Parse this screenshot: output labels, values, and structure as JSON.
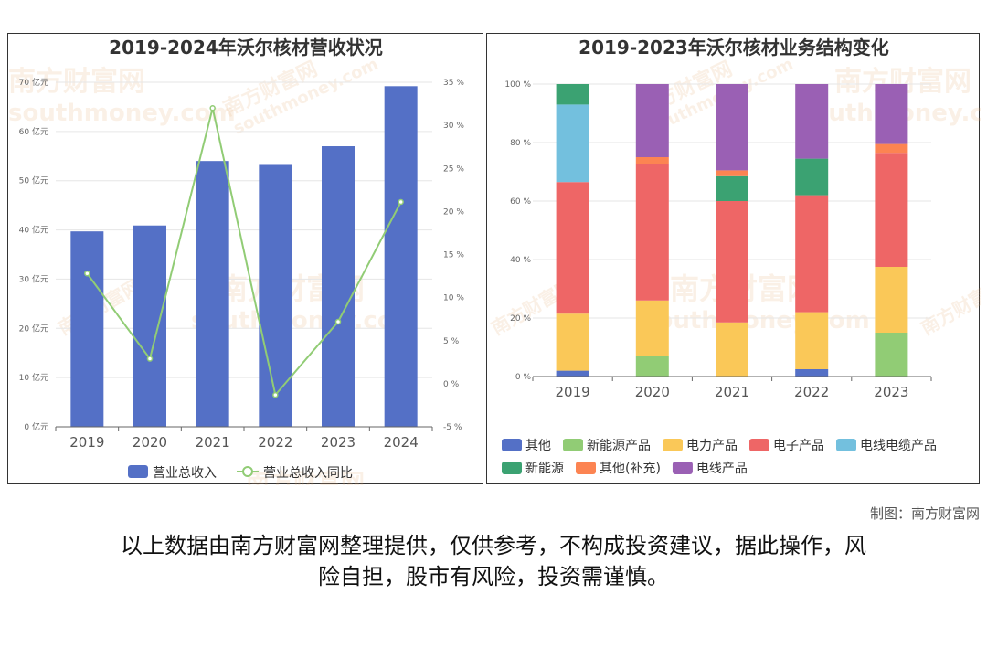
{
  "colors": {
    "bar": "#5470c6",
    "line": "#91cc75",
    "series": [
      "#5470c6",
      "#91cc75",
      "#fac858",
      "#ee6666",
      "#73c0de",
      "#3ba272",
      "#fc8452",
      "#9a60b4"
    ]
  },
  "watermark": {
    "cn": "南方财富网",
    "en": "southmoney.com"
  },
  "credit": "制图：南方财富网",
  "disclaimer": {
    "line1": "以上数据由南方财富网整理提供，仅供参考，不构成投资建议，据此操作，风",
    "line2": "险自担，股市有风险，投资需谨慎。"
  },
  "chart_data": [
    {
      "type": "bar",
      "title": "2019-2024年沃尔核材营收状况",
      "categories": [
        "2019",
        "2020",
        "2021",
        "2022",
        "2023",
        "2024"
      ],
      "series": [
        {
          "name": "营业总收入",
          "type": "bar",
          "axis": "left",
          "values": [
            39.7,
            40.9,
            54.0,
            53.2,
            57.0,
            69.2
          ]
        },
        {
          "name": "营业总收入同比",
          "type": "line",
          "axis": "right",
          "values": [
            12.8,
            2.9,
            32.0,
            -1.3,
            7.2,
            21.1
          ]
        }
      ],
      "y_left": {
        "ylim": [
          0,
          70
        ],
        "ticks": [
          0,
          10,
          20,
          30,
          40,
          50,
          60,
          70
        ],
        "tick_labels": [
          "0 亿元",
          "10 亿元",
          "20 亿元",
          "30 亿元",
          "40 亿元",
          "50 亿元",
          "60 亿元",
          "70 亿元"
        ]
      },
      "y_right": {
        "ylim": [
          -5,
          35
        ],
        "ticks": [
          -5,
          0,
          5,
          10,
          15,
          20,
          25,
          30,
          35
        ],
        "tick_labels": [
          "-5 %",
          "0 %",
          "5 %",
          "10 %",
          "15 %",
          "20 %",
          "25 %",
          "30 %",
          "35 %"
        ]
      },
      "grid": true,
      "legend_position": "bottom"
    },
    {
      "type": "bar",
      "stacked": true,
      "title": "2019-2023年沃尔核材业务结构变化",
      "categories": [
        "2019",
        "2020",
        "2021",
        "2022",
        "2023"
      ],
      "series": [
        {
          "name": "其他",
          "values": [
            2,
            0,
            0,
            2.5,
            0
          ]
        },
        {
          "name": "新能源产品",
          "values": [
            0,
            7,
            0,
            0,
            15
          ]
        },
        {
          "name": "电力产品",
          "values": [
            19.5,
            19,
            18.5,
            19.5,
            22.5
          ]
        },
        {
          "name": "电子产品",
          "values": [
            45,
            46.5,
            41.5,
            40,
            39
          ]
        },
        {
          "name": "电线电缆产品",
          "values": [
            26.5,
            0,
            0,
            0,
            0
          ]
        },
        {
          "name": "新能源",
          "values": [
            7,
            0,
            8.5,
            12.5,
            0
          ]
        },
        {
          "name": "其他(补充)",
          "values": [
            0,
            2.5,
            2,
            0,
            3
          ]
        },
        {
          "name": "电线产品",
          "values": [
            0,
            25,
            29.5,
            25.5,
            20.5
          ]
        }
      ],
      "ylim": [
        0,
        100
      ],
      "ticks": [
        0,
        20,
        40,
        60,
        80,
        100
      ],
      "tick_labels": [
        "0 %",
        "20 %",
        "40 %",
        "60 %",
        "80 %",
        "100 %"
      ],
      "grid": true,
      "legend_position": "bottom"
    }
  ]
}
